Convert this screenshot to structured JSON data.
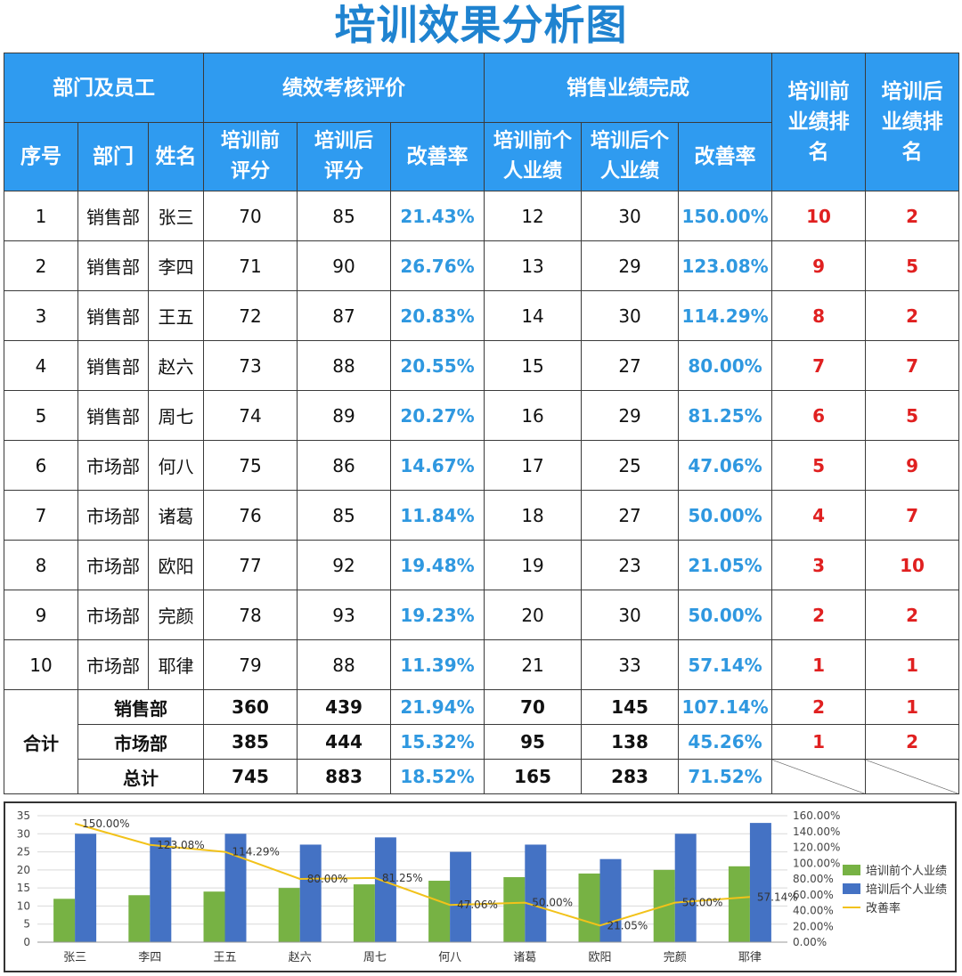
{
  "title": "培训效果分析图",
  "headers": {
    "group_dept": "部门及员工",
    "group_perf": "绩效考核评价",
    "group_sales": "销售业绩完成",
    "rank_before": "培训前业绩排名",
    "rank_after": "培训后业绩排名",
    "no": "序号",
    "dept": "部门",
    "name": "姓名",
    "score_before": "培训前评分",
    "score_after": "培训后评分",
    "perf_rate": "改善率",
    "sales_before": "培训前个人业绩",
    "sales_after": "培训后个人业绩",
    "sales_rate": "改善率"
  },
  "rows": [
    {
      "no": "1",
      "dept": "销售部",
      "name": "张三",
      "score_before": "70",
      "score_after": "85",
      "perf_rate": "21.43%",
      "sales_before": "12",
      "sales_after": "30",
      "sales_rate": "150.00%",
      "rank_before": "10",
      "rank_after": "2"
    },
    {
      "no": "2",
      "dept": "销售部",
      "name": "李四",
      "score_before": "71",
      "score_after": "90",
      "perf_rate": "26.76%",
      "sales_before": "13",
      "sales_after": "29",
      "sales_rate": "123.08%",
      "rank_before": "9",
      "rank_after": "5"
    },
    {
      "no": "3",
      "dept": "销售部",
      "name": "王五",
      "score_before": "72",
      "score_after": "87",
      "perf_rate": "20.83%",
      "sales_before": "14",
      "sales_after": "30",
      "sales_rate": "114.29%",
      "rank_before": "8",
      "rank_after": "2"
    },
    {
      "no": "4",
      "dept": "销售部",
      "name": "赵六",
      "score_before": "73",
      "score_after": "88",
      "perf_rate": "20.55%",
      "sales_before": "15",
      "sales_after": "27",
      "sales_rate": "80.00%",
      "rank_before": "7",
      "rank_after": "7"
    },
    {
      "no": "5",
      "dept": "销售部",
      "name": "周七",
      "score_before": "74",
      "score_after": "89",
      "perf_rate": "20.27%",
      "sales_before": "16",
      "sales_after": "29",
      "sales_rate": "81.25%",
      "rank_before": "6",
      "rank_after": "5"
    },
    {
      "no": "6",
      "dept": "市场部",
      "name": "何八",
      "score_before": "75",
      "score_after": "86",
      "perf_rate": "14.67%",
      "sales_before": "17",
      "sales_after": "25",
      "sales_rate": "47.06%",
      "rank_before": "5",
      "rank_after": "9"
    },
    {
      "no": "7",
      "dept": "市场部",
      "name": "诸葛",
      "score_before": "76",
      "score_after": "85",
      "perf_rate": "11.84%",
      "sales_before": "18",
      "sales_after": "27",
      "sales_rate": "50.00%",
      "rank_before": "4",
      "rank_after": "7"
    },
    {
      "no": "8",
      "dept": "市场部",
      "name": "欧阳",
      "score_before": "77",
      "score_after": "92",
      "perf_rate": "19.48%",
      "sales_before": "19",
      "sales_after": "23",
      "sales_rate": "21.05%",
      "rank_before": "3",
      "rank_after": "10"
    },
    {
      "no": "9",
      "dept": "市场部",
      "name": "完颜",
      "score_before": "78",
      "score_after": "93",
      "perf_rate": "19.23%",
      "sales_before": "20",
      "sales_after": "30",
      "sales_rate": "50.00%",
      "rank_before": "2",
      "rank_after": "2"
    },
    {
      "no": "10",
      "dept": "市场部",
      "name": "耶律",
      "score_before": "79",
      "score_after": "88",
      "perf_rate": "11.39%",
      "sales_before": "21",
      "sales_after": "33",
      "sales_rate": "57.14%",
      "rank_before": "1",
      "rank_after": "1"
    }
  ],
  "summary": {
    "label": "合计",
    "rows": [
      {
        "name": "销售部",
        "score_before": "360",
        "score_after": "439",
        "perf_rate": "21.94%",
        "sales_before": "70",
        "sales_after": "145",
        "sales_rate": "107.14%",
        "rank_before": "2",
        "rank_after": "1"
      },
      {
        "name": "市场部",
        "score_before": "385",
        "score_after": "444",
        "perf_rate": "15.32%",
        "sales_before": "95",
        "sales_after": "138",
        "sales_rate": "45.26%",
        "rank_before": "1",
        "rank_after": "2"
      },
      {
        "name": "总计",
        "score_before": "745",
        "score_after": "883",
        "perf_rate": "18.52%",
        "sales_before": "165",
        "sales_after": "283",
        "sales_rate": "71.52%"
      }
    ]
  },
  "colors": {
    "title": "#1f83d0",
    "header_bg": "#2f9bf0",
    "rate_text": "#2f98e0",
    "rank_text": "#e02020",
    "bar_before": "#77b244",
    "bar_after": "#4472c4",
    "line": "#f2c21a"
  },
  "chart_data": {
    "type": "bar",
    "categories": [
      "张三",
      "李四",
      "王五",
      "赵六",
      "周七",
      "何八",
      "诸葛",
      "欧阳",
      "完颜",
      "耶律"
    ],
    "series": [
      {
        "name": "培训前个人业绩",
        "type": "bar",
        "axis": "left",
        "values": [
          12,
          13,
          14,
          15,
          16,
          17,
          18,
          19,
          20,
          21
        ]
      },
      {
        "name": "培训后个人业绩",
        "type": "bar",
        "axis": "left",
        "values": [
          30,
          29,
          30,
          27,
          29,
          25,
          27,
          23,
          30,
          33
        ]
      },
      {
        "name": "改善率",
        "type": "line",
        "axis": "right",
        "values": [
          150.0,
          123.08,
          114.29,
          80.0,
          81.25,
          47.06,
          50.0,
          21.05,
          50.0,
          57.14
        ],
        "labels": [
          "150.00%",
          "123.08%",
          "114.29%",
          "80.00%",
          "81.25%",
          "47.06%",
          "50.00%",
          "21.05%",
          "50.00%",
          "57.14%"
        ]
      }
    ],
    "ylim": [
      0,
      35
    ],
    "yticks": [
      "0",
      "5",
      "10",
      "15",
      "20",
      "25",
      "30",
      "35"
    ],
    "y2lim": [
      0,
      160
    ],
    "y2ticks": [
      "0.00%",
      "20.00%",
      "40.00%",
      "60.00%",
      "80.00%",
      "100.00%",
      "120.00%",
      "140.00%",
      "160.00%"
    ],
    "grid": true,
    "legend": "right"
  }
}
